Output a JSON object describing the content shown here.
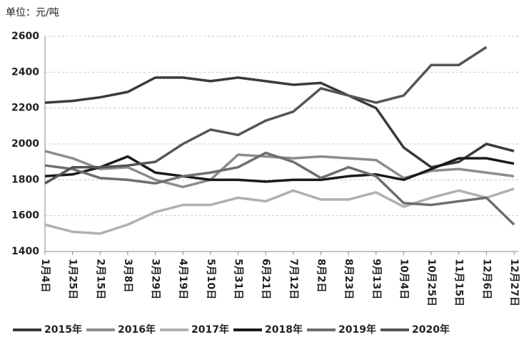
{
  "chart_data": {
    "type": "line",
    "unit_label": "单位：元/吨",
    "categories": [
      "1月4日",
      "1月25日",
      "2月15日",
      "3月8日",
      "3月29日",
      "4月19日",
      "5月10日",
      "5月31日",
      "6月21日",
      "7月12日",
      "8月2日",
      "8月23日",
      "9月13日",
      "10月4日",
      "10月25日",
      "11月15日",
      "12月6日",
      "12月27日"
    ],
    "series": [
      {
        "name": "2015年",
        "color": "#3a3a3a",
        "values": [
          2230,
          2240,
          2260,
          2290,
          2370,
          2370,
          2350,
          2370,
          2350,
          2330,
          2340,
          2270,
          2200,
          1980,
          1870,
          1900,
          2000,
          1960
        ]
      },
      {
        "name": "2016年",
        "color": "#8c8c8c",
        "values": [
          1960,
          1920,
          1860,
          1870,
          1800,
          1760,
          1800,
          1940,
          1930,
          1920,
          1930,
          1920,
          1910,
          1810,
          1850,
          1860,
          1840,
          1820
        ]
      },
      {
        "name": "2017年",
        "color": "#b0b0b0",
        "values": [
          1550,
          1510,
          1500,
          1550,
          1620,
          1660,
          1660,
          1700,
          1680,
          1740,
          1690,
          1690,
          1730,
          1650,
          1700,
          1740,
          1700,
          1750
        ]
      },
      {
        "name": "2018年",
        "color": "#1a1a1a",
        "values": [
          1820,
          1830,
          1870,
          1930,
          1840,
          1820,
          1800,
          1800,
          1790,
          1800,
          1800,
          1820,
          1830,
          1800,
          1860,
          1920,
          1920,
          1890
        ]
      },
      {
        "name": "2019年",
        "color": "#6e6e6e",
        "values": [
          1880,
          1860,
          1810,
          1800,
          1780,
          1820,
          1840,
          1870,
          1950,
          1900,
          1810,
          1870,
          1820,
          1670,
          1660,
          1680,
          1700,
          1550
        ]
      },
      {
        "name": "2020年",
        "color": "#555555",
        "values": [
          1780,
          1870,
          1870,
          1880,
          1900,
          2000,
          2080,
          2050,
          2130,
          2180,
          2310,
          2270,
          2230,
          2270,
          2440,
          2440,
          2540,
          null
        ]
      }
    ],
    "ylim": [
      1400,
      2600
    ],
    "yticks": [
      1400,
      1600,
      1800,
      2000,
      2200,
      2400,
      2600
    ],
    "grid": true
  }
}
